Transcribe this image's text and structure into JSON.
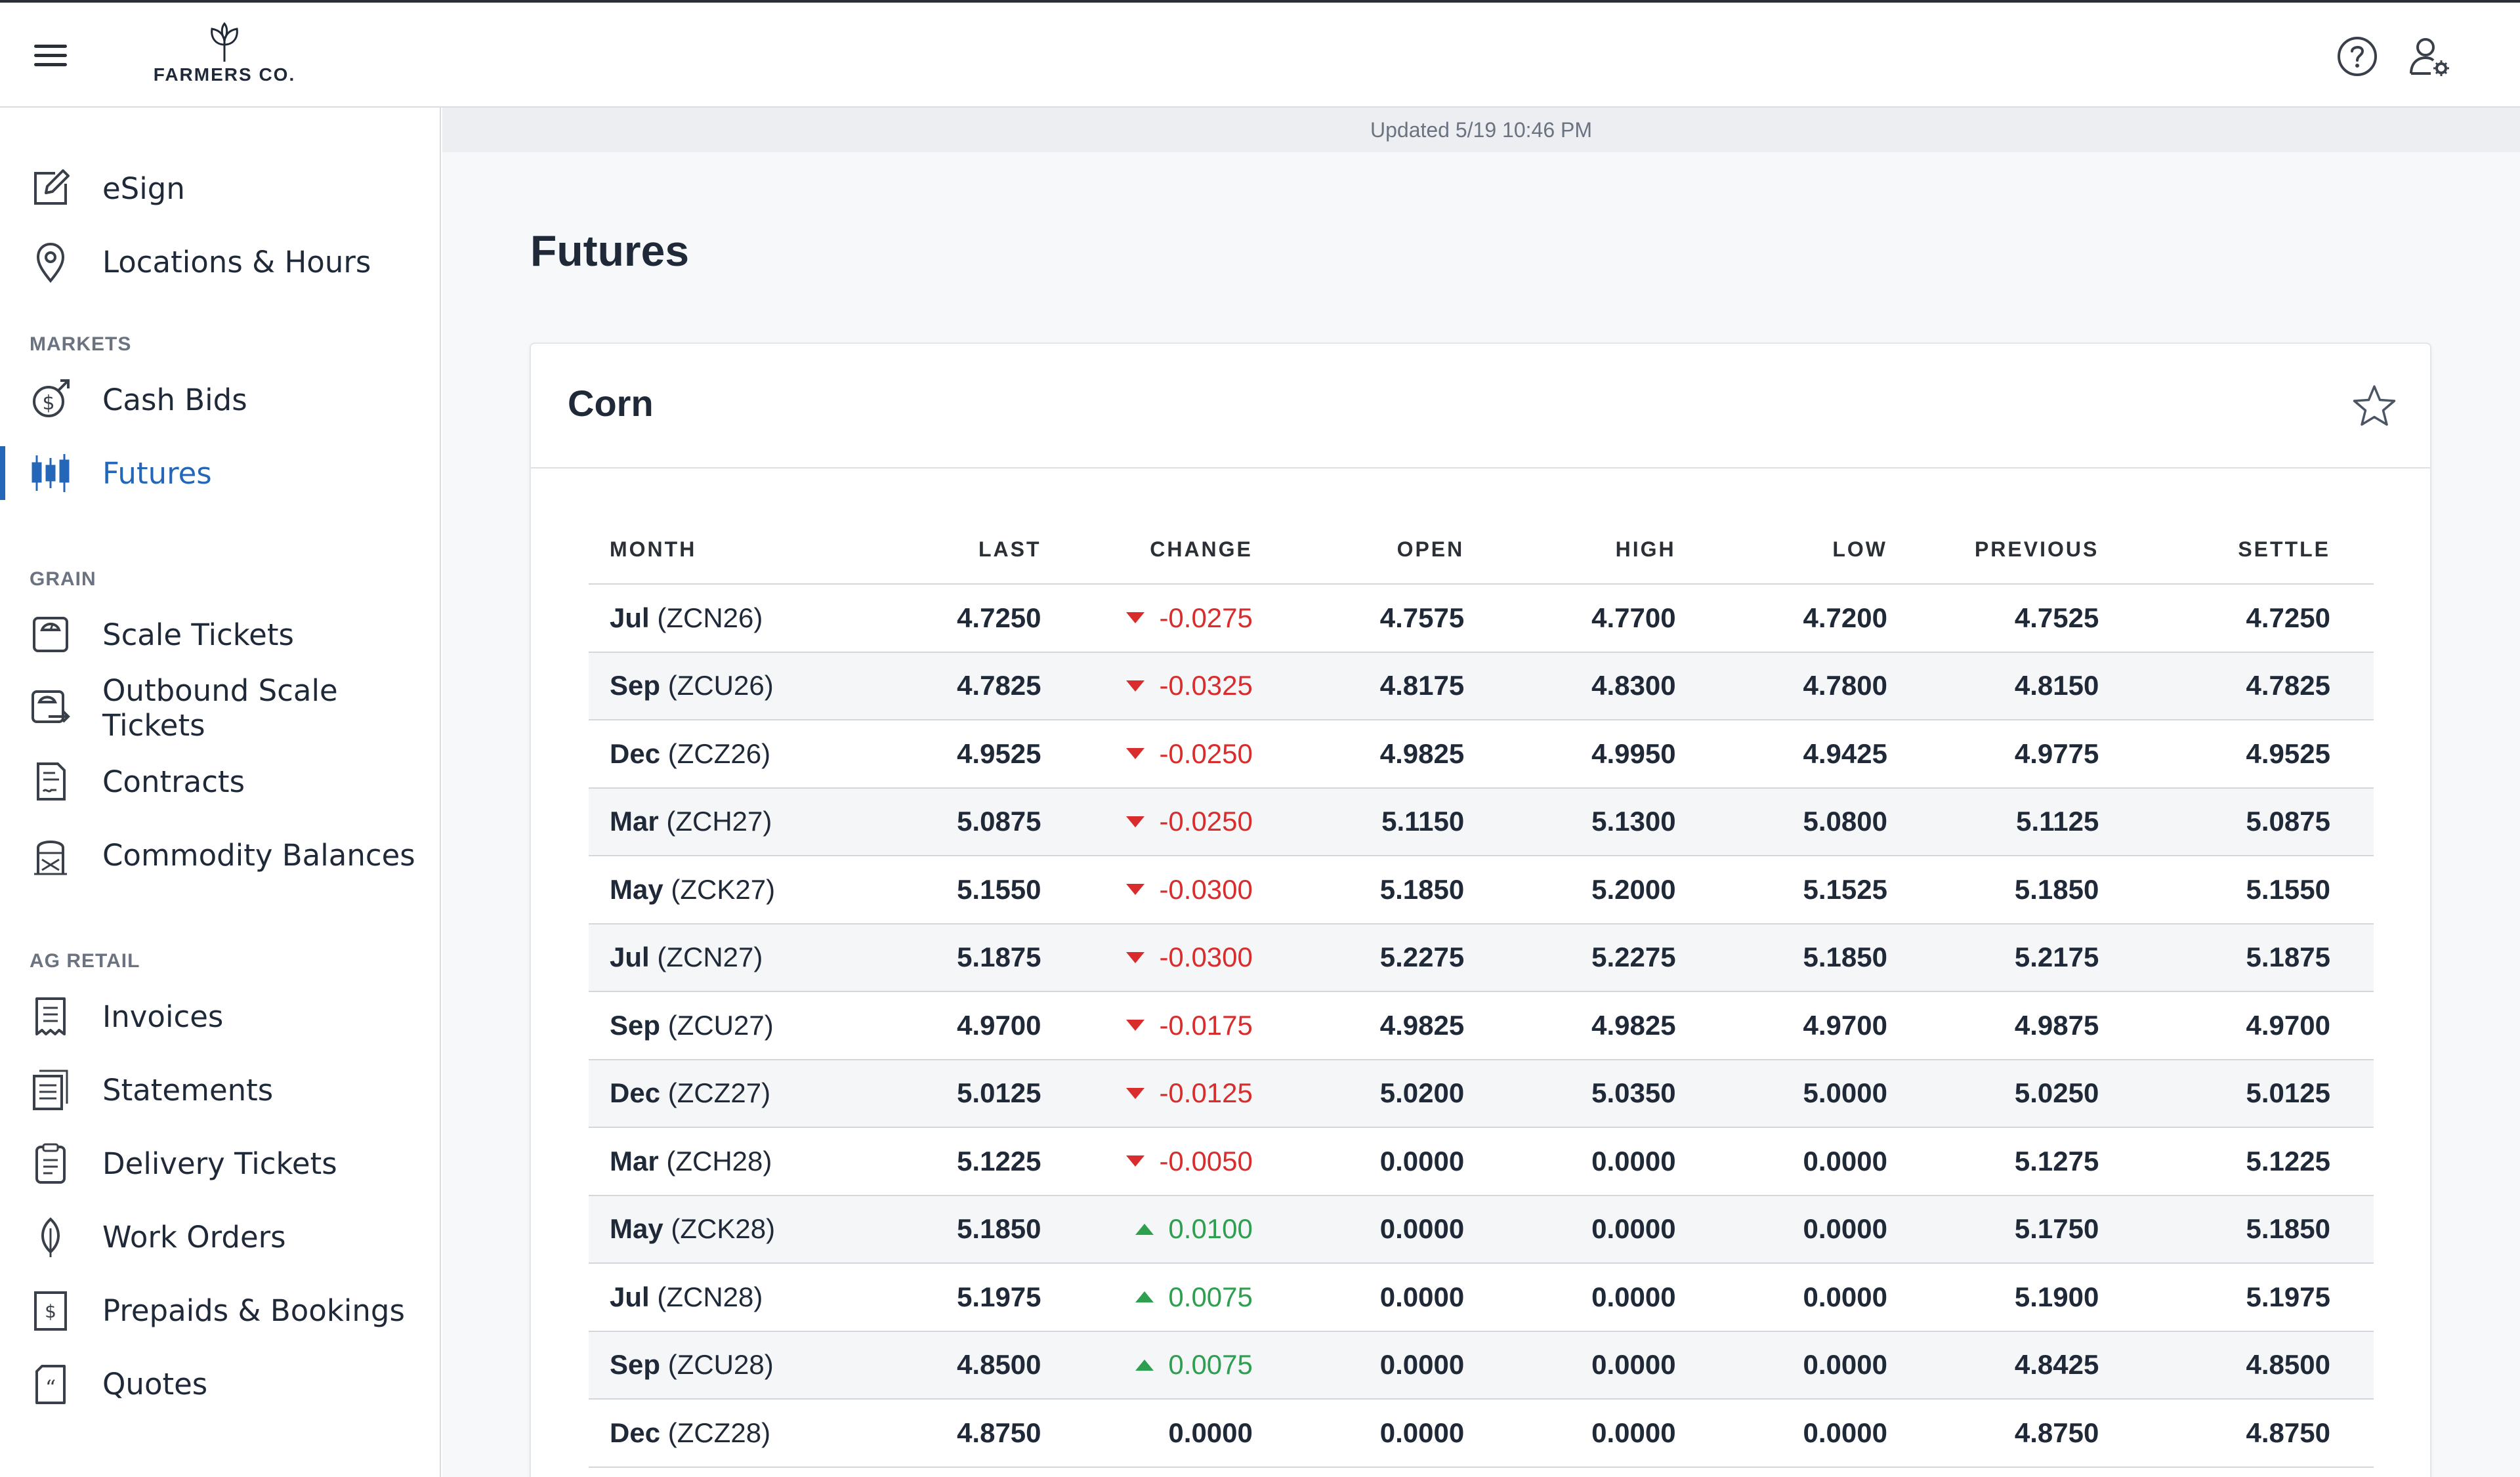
{
  "header": {
    "logo_text": "FARMERS CO.",
    "help_icon": "help-circle-icon",
    "user_icon": "user-settings-icon"
  },
  "sidebar": {
    "items_top": [
      {
        "label": "eSign",
        "icon": "esign-icon"
      },
      {
        "label": "Locations & Hours",
        "icon": "location-pin-icon"
      }
    ],
    "markets": {
      "heading": "MARKETS",
      "items": [
        {
          "label": "Cash Bids",
          "icon": "cash-bids-icon"
        },
        {
          "label": "Futures",
          "icon": "candlestick-icon",
          "active": true
        }
      ]
    },
    "grain": {
      "heading": "GRAIN",
      "items": [
        {
          "label": "Scale Tickets",
          "icon": "scale-icon"
        },
        {
          "label": "Outbound Scale Tickets",
          "icon": "outbound-scale-icon"
        },
        {
          "label": "Contracts",
          "icon": "contract-icon"
        },
        {
          "label": "Commodity Balances",
          "icon": "silo-icon"
        }
      ]
    },
    "ag_retail": {
      "heading": "AG RETAIL",
      "items": [
        {
          "label": "Invoices",
          "icon": "invoice-icon"
        },
        {
          "label": "Statements",
          "icon": "statements-icon"
        },
        {
          "label": "Delivery Tickets",
          "icon": "clipboard-icon"
        },
        {
          "label": "Work Orders",
          "icon": "leaf-icon"
        },
        {
          "label": "Prepaids & Bookings",
          "icon": "prepaid-icon"
        },
        {
          "label": "Quotes",
          "icon": "quote-icon"
        }
      ]
    }
  },
  "main": {
    "updated": "Updated 5/19 10:46 PM",
    "title": "Futures",
    "card": {
      "title": "Corn",
      "star_icon": "star-icon",
      "columns": [
        "MONTH",
        "LAST",
        "CHANGE",
        "OPEN",
        "HIGH",
        "LOW",
        "PREVIOUS",
        "SETTLE"
      ],
      "rows": [
        {
          "month": "Jul",
          "symbol": "(ZCN26)",
          "last": "4.7250",
          "change": "-0.0275",
          "dir": "down",
          "open": "4.7575",
          "high": "4.7700",
          "low": "4.7200",
          "previous": "4.7525",
          "settle": "4.7250"
        },
        {
          "month": "Sep",
          "symbol": "(ZCU26)",
          "last": "4.7825",
          "change": "-0.0325",
          "dir": "down",
          "open": "4.8175",
          "high": "4.8300",
          "low": "4.7800",
          "previous": "4.8150",
          "settle": "4.7825"
        },
        {
          "month": "Dec",
          "symbol": "(ZCZ26)",
          "last": "4.9525",
          "change": "-0.0250",
          "dir": "down",
          "open": "4.9825",
          "high": "4.9950",
          "low": "4.9425",
          "previous": "4.9775",
          "settle": "4.9525"
        },
        {
          "month": "Mar",
          "symbol": "(ZCH27)",
          "last": "5.0875",
          "change": "-0.0250",
          "dir": "down",
          "open": "5.1150",
          "high": "5.1300",
          "low": "5.0800",
          "previous": "5.1125",
          "settle": "5.0875"
        },
        {
          "month": "May",
          "symbol": "(ZCK27)",
          "last": "5.1550",
          "change": "-0.0300",
          "dir": "down",
          "open": "5.1850",
          "high": "5.2000",
          "low": "5.1525",
          "previous": "5.1850",
          "settle": "5.1550"
        },
        {
          "month": "Jul",
          "symbol": "(ZCN27)",
          "last": "5.1875",
          "change": "-0.0300",
          "dir": "down",
          "open": "5.2275",
          "high": "5.2275",
          "low": "5.1850",
          "previous": "5.2175",
          "settle": "5.1875"
        },
        {
          "month": "Sep",
          "symbol": "(ZCU27)",
          "last": "4.9700",
          "change": "-0.0175",
          "dir": "down",
          "open": "4.9825",
          "high": "4.9825",
          "low": "4.9700",
          "previous": "4.9875",
          "settle": "4.9700"
        },
        {
          "month": "Dec",
          "symbol": "(ZCZ27)",
          "last": "5.0125",
          "change": "-0.0125",
          "dir": "down",
          "open": "5.0200",
          "high": "5.0350",
          "low": "5.0000",
          "previous": "5.0250",
          "settle": "5.0125"
        },
        {
          "month": "Mar",
          "symbol": "(ZCH28)",
          "last": "5.1225",
          "change": "-0.0050",
          "dir": "down",
          "open": "0.0000",
          "high": "0.0000",
          "low": "0.0000",
          "previous": "5.1275",
          "settle": "5.1225"
        },
        {
          "month": "May",
          "symbol": "(ZCK28)",
          "last": "5.1850",
          "change": "0.0100",
          "dir": "up",
          "open": "0.0000",
          "high": "0.0000",
          "low": "0.0000",
          "previous": "5.1750",
          "settle": "5.1850"
        },
        {
          "month": "Jul",
          "symbol": "(ZCN28)",
          "last": "5.1975",
          "change": "0.0075",
          "dir": "up",
          "open": "0.0000",
          "high": "0.0000",
          "low": "0.0000",
          "previous": "5.1900",
          "settle": "5.1975"
        },
        {
          "month": "Sep",
          "symbol": "(ZCU28)",
          "last": "4.8500",
          "change": "0.0075",
          "dir": "up",
          "open": "0.0000",
          "high": "0.0000",
          "low": "0.0000",
          "previous": "4.8425",
          "settle": "4.8500"
        },
        {
          "month": "Dec",
          "symbol": "(ZCZ28)",
          "last": "4.8750",
          "change": "0.0000",
          "dir": "flat",
          "open": "0.0000",
          "high": "0.0000",
          "low": "0.0000",
          "previous": "4.8750",
          "settle": "4.8750"
        }
      ]
    }
  },
  "colors": {
    "accent": "#2467b8",
    "negative": "#d92d2d",
    "positive": "#2e9e4f"
  }
}
